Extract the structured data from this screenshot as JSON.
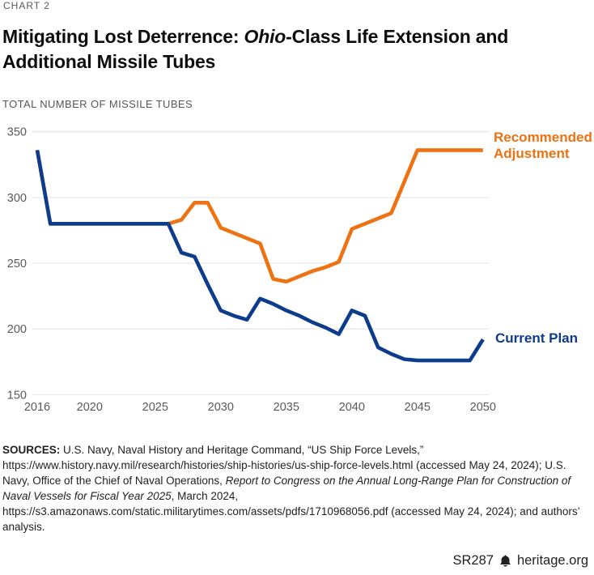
{
  "kicker": "CHART 2",
  "title": {
    "pre": "Mitigating Lost Deterrence: ",
    "italic": "Ohio",
    "post_line1": "-Class Life Extension and",
    "post_line2": "Additional Missile Tubes"
  },
  "chart_data": {
    "type": "line",
    "title": "Mitigating Lost Deterrence: Ohio-Class Life Extension and Additional Missile Tubes",
    "xlabel": "",
    "ylabel": "TOTAL NUMBER OF MISSILE TUBES",
    "x": [
      2016,
      2017,
      2018,
      2019,
      2020,
      2021,
      2022,
      2023,
      2024,
      2025,
      2026,
      2027,
      2028,
      2029,
      2030,
      2031,
      2032,
      2033,
      2034,
      2035,
      2036,
      2037,
      2038,
      2039,
      2040,
      2041,
      2042,
      2043,
      2044,
      2045,
      2046,
      2047,
      2048,
      2049,
      2050
    ],
    "series": [
      {
        "name": "Current Plan",
        "color": "#0d3c8c",
        "values": [
          336,
          280,
          280,
          280,
          280,
          280,
          280,
          280,
          280,
          280,
          280,
          258,
          255,
          234,
          214,
          210,
          207,
          223,
          219,
          214,
          210,
          205,
          201,
          196,
          214,
          210,
          186,
          181,
          177,
          176,
          176,
          176,
          176,
          176,
          192
        ]
      },
      {
        "name": "Recommended Adjustment",
        "color": "#ee7211",
        "values": [
          336,
          280,
          280,
          280,
          280,
          280,
          280,
          280,
          280,
          280,
          280,
          283,
          296,
          296,
          277,
          273,
          269,
          265,
          238,
          236,
          240,
          244,
          247,
          251,
          276,
          280,
          284,
          288,
          312,
          336,
          336,
          336,
          336,
          336,
          336
        ]
      }
    ],
    "xticks": [
      2016,
      2020,
      2025,
      2030,
      2035,
      2040,
      2045,
      2050
    ],
    "yticks": [
      150,
      200,
      250,
      300,
      350
    ],
    "xlim": [
      2016,
      2050
    ],
    "ylim": [
      150,
      350
    ],
    "grid": "horizontal",
    "legend_position": "end-of-line-labels",
    "tick_color": "#58595b",
    "grid_color": "#e3e3e3"
  },
  "sources": {
    "segments": [
      {
        "style": "bold",
        "text": "SOURCES: "
      },
      {
        "style": "normal",
        "text": "U.S. Navy, Naval History and Heritage Command, “US Ship Force Levels,” https://www.history.navy.mil/research/histories/ship-histories/us-ship-force-levels.html (accessed May 24, 2024); U.S. Navy, Office of the Chief of Naval Operations, "
      },
      {
        "style": "italic",
        "text": "Report to Congress on the Annual Long-Range Plan for Construction of Naval Vessels for Fiscal Year 2025"
      },
      {
        "style": "normal",
        "text": ", March 2024, https://s3.amazonaws.com/static.militarytimes.com/assets/pdfs/1710968056.pdf (accessed May 24, 2024); and authors’ analysis."
      }
    ]
  },
  "footer": {
    "report_id": "SR287",
    "site": "heritage.org",
    "icon": "heritage-bell"
  }
}
